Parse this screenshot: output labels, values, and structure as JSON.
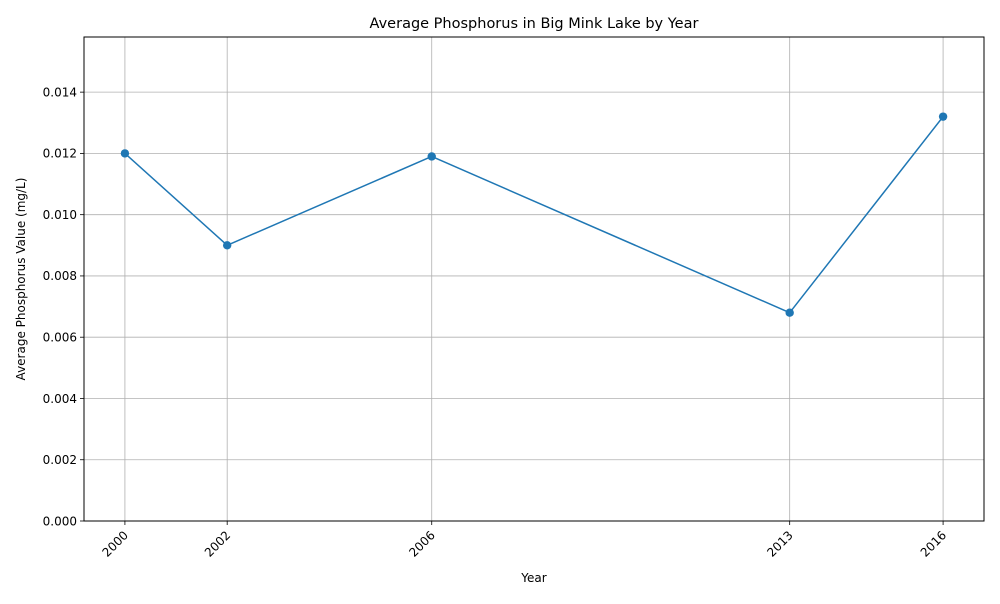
{
  "chart_data": {
    "type": "line",
    "title": "Average Phosphorus in Big Mink Lake by Year",
    "xlabel": "Year",
    "ylabel": "Average Phosphorus Value (mg/L)",
    "x": [
      2000,
      2002,
      2006,
      2013,
      2016
    ],
    "x_tick_labels": [
      "2000",
      "2002",
      "2006",
      "2013",
      "2016"
    ],
    "series": [
      {
        "values": [
          0.012,
          0.009,
          0.0119,
          0.0068,
          0.0132
        ],
        "color": "#1f77b4",
        "marker": "circle"
      }
    ],
    "xlim": [
      1999.2,
      2016.8
    ],
    "ylim": [
      0,
      0.0158
    ],
    "y_ticks": [
      0.0,
      0.002,
      0.004,
      0.006,
      0.008,
      0.01,
      0.012,
      0.014
    ],
    "y_tick_labels": [
      "0.000",
      "0.002",
      "0.004",
      "0.006",
      "0.008",
      "0.010",
      "0.012",
      "0.014"
    ],
    "grid": true,
    "colors": {
      "line": "#1f77b4",
      "grid": "#b0b0b0",
      "axes": "#000000"
    }
  }
}
